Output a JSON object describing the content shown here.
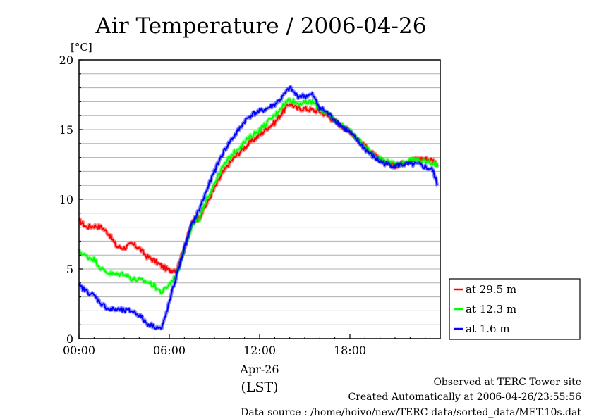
{
  "chart_data": {
    "type": "line",
    "title": "Air Temperature / 2006-04-26",
    "ylabel": "[°C]",
    "xlabel": "(LST)",
    "date_label": "Apr-26",
    "ylim": [
      0,
      20
    ],
    "xlim": [
      "00:00",
      "24:00"
    ],
    "yticks": [
      "0",
      "5",
      "10",
      "15",
      "20"
    ],
    "xticks": [
      "00:00",
      "06:00",
      "12:00",
      "18:00"
    ],
    "grid": true,
    "legend_position": "right-outside",
    "x": [
      "00:00",
      "00:30",
      "01:00",
      "01:30",
      "02:00",
      "02:30",
      "03:00",
      "03:30",
      "04:00",
      "04:30",
      "05:00",
      "05:30",
      "06:00",
      "06:30",
      "07:00",
      "07:30",
      "08:00",
      "08:30",
      "09:00",
      "09:30",
      "10:00",
      "10:30",
      "11:00",
      "11:30",
      "12:00",
      "12:30",
      "13:00",
      "13:30",
      "14:00",
      "14:30",
      "15:00",
      "15:30",
      "16:00",
      "16:30",
      "17:00",
      "17:30",
      "18:00",
      "18:30",
      "19:00",
      "19:30",
      "20:00",
      "20:30",
      "21:00",
      "21:30",
      "22:00",
      "22:30",
      "23:00",
      "23:30",
      "23:50"
    ],
    "series": [
      {
        "name": "at 29.5 m",
        "color": "#ff0000",
        "values": [
          8.5,
          8.0,
          8.1,
          8.0,
          7.5,
          6.6,
          6.5,
          6.8,
          6.5,
          5.9,
          5.6,
          5.2,
          4.9,
          5.0,
          6.5,
          8.3,
          8.7,
          9.7,
          10.8,
          11.8,
          12.6,
          13.2,
          13.7,
          14.2,
          14.6,
          15.1,
          15.5,
          16.2,
          16.9,
          16.5,
          16.5,
          16.4,
          16.3,
          16.0,
          15.6,
          15.2,
          14.9,
          14.3,
          13.8,
          13.3,
          12.8,
          12.6,
          12.4,
          12.6,
          12.8,
          12.9,
          12.9,
          12.8,
          12.5
        ]
      },
      {
        "name": "at 12.3 m",
        "color": "#00ff00",
        "values": [
          6.3,
          5.9,
          5.7,
          5.0,
          4.7,
          4.6,
          4.7,
          4.3,
          4.2,
          4.1,
          3.8,
          3.3,
          3.9,
          4.6,
          6.5,
          8.1,
          8.6,
          10.0,
          11.2,
          12.2,
          13.0,
          13.6,
          14.1,
          14.6,
          15.0,
          15.5,
          16.0,
          16.7,
          17.2,
          16.9,
          16.9,
          17.0,
          16.5,
          16.1,
          15.7,
          15.3,
          14.9,
          14.3,
          13.8,
          13.3,
          12.9,
          12.7,
          12.5,
          12.6,
          12.8,
          12.8,
          12.7,
          12.6,
          12.4
        ]
      },
      {
        "name": "at 1.6 m",
        "color": "#0000ff",
        "values": [
          3.8,
          3.4,
          3.1,
          2.5,
          2.1,
          2.1,
          2.0,
          2.0,
          1.7,
          1.1,
          0.9,
          0.7,
          2.6,
          4.6,
          6.5,
          8.2,
          9.3,
          10.7,
          12.0,
          13.2,
          14.1,
          14.8,
          15.6,
          16.1,
          16.3,
          16.5,
          16.8,
          17.3,
          18.0,
          17.4,
          17.4,
          17.5,
          16.6,
          16.2,
          15.7,
          15.2,
          14.8,
          14.2,
          13.6,
          13.1,
          12.7,
          12.5,
          12.4,
          12.5,
          12.5,
          12.5,
          12.3,
          12.1,
          11.0
        ]
      }
    ]
  },
  "footer": {
    "site": "Observed at TERC Tower site",
    "created": "Created Automatically at 2006-04-26/23:55:56",
    "source": "Data source : /home/hoivo/new/TERC-data/sorted_data/MET.10s.dat"
  }
}
